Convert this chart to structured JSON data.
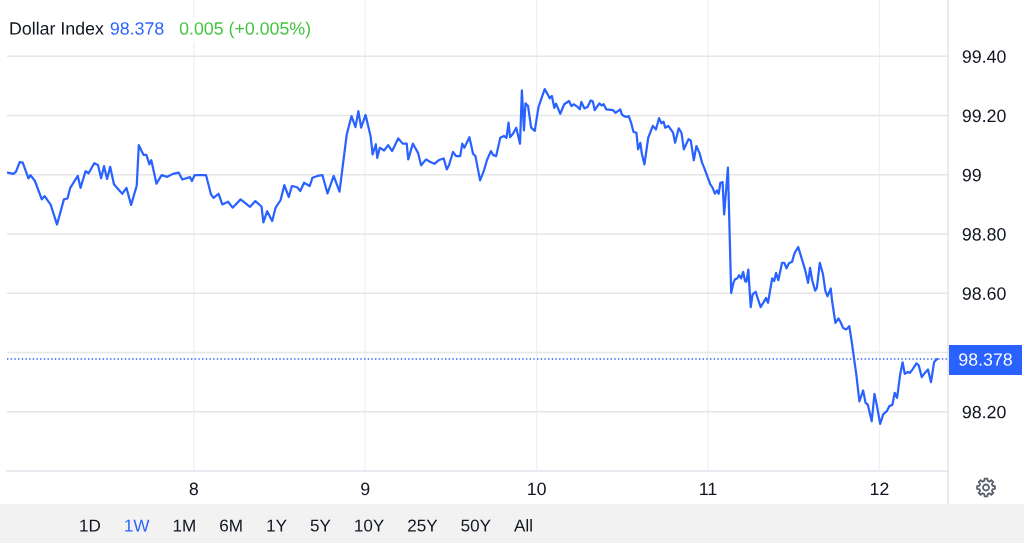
{
  "chart_data": {
    "type": "line",
    "title": "Dollar Index",
    "annotations": [
      "98.378",
      "0.005 (+0.005%)",
      "1D",
      "1W",
      "1M",
      "6M",
      "1Y",
      "5Y",
      "10Y",
      "25Y",
      "50Y",
      "All"
    ],
    "x": [
      6.914,
      6.947,
      6.962,
      6.984,
      7.002,
      7.035,
      7.047,
      7.073,
      7.113,
      7.13,
      7.15,
      7.164,
      7.202,
      7.242,
      7.263,
      7.279,
      7.323,
      7.339,
      7.368,
      7.386,
      7.419,
      7.441,
      7.459,
      7.476,
      7.494,
      7.512,
      7.534,
      7.568,
      7.583,
      7.607,
      7.634,
      7.667,
      7.679,
      7.707,
      7.723,
      7.741,
      7.752,
      7.782,
      7.812,
      7.845,
      7.878,
      7.912,
      7.933,
      7.978,
      7.989,
      8.005,
      8.071,
      8.1,
      8.115,
      8.144,
      8.166,
      8.2,
      8.226,
      8.273,
      8.328,
      8.359,
      8.395,
      8.406,
      8.428,
      8.457,
      8.477,
      8.506,
      8.528,
      8.554,
      8.572,
      8.603,
      8.621,
      8.643,
      8.676,
      8.692,
      8.721,
      8.75,
      8.78,
      8.816,
      8.85,
      8.892,
      8.92,
      8.943,
      8.96,
      8.976,
      9.002,
      9.031,
      9.043,
      9.062,
      9.07,
      9.085,
      9.11,
      9.134,
      9.157,
      9.193,
      9.218,
      9.242,
      9.251,
      9.278,
      9.308,
      9.326,
      9.355,
      9.377,
      9.404,
      9.431,
      9.458,
      9.476,
      9.489,
      9.512,
      9.53,
      9.554,
      9.566,
      9.578,
      9.608,
      9.629,
      9.643,
      9.67,
      9.692,
      9.71,
      9.733,
      9.746,
      9.764,
      9.788,
      9.809,
      9.824,
      9.836,
      9.845,
      9.863,
      9.881,
      9.903,
      9.914,
      9.926,
      9.935,
      9.95,
      9.968,
      9.989,
      10.011,
      10.047,
      10.062,
      10.076,
      10.089,
      10.103,
      10.113,
      10.138,
      10.161,
      10.189,
      10.203,
      10.216,
      10.239,
      10.252,
      10.261,
      10.279,
      10.297,
      10.315,
      10.328,
      10.339,
      10.366,
      10.379,
      10.391,
      10.406,
      10.446,
      10.46,
      10.488,
      10.497,
      10.51,
      10.524,
      10.537,
      10.551,
      10.565,
      10.582,
      10.592,
      10.605,
      10.614,
      10.629,
      10.651,
      10.678,
      10.696,
      10.714,
      10.728,
      10.741,
      10.75,
      10.768,
      10.796,
      10.808,
      10.829,
      10.845,
      10.859,
      10.886,
      10.899,
      10.917,
      10.932,
      10.95,
      10.965,
      10.977,
      10.995,
      11.013,
      11.027,
      11.04,
      11.052,
      11.062,
      11.072,
      11.085,
      11.094,
      11.116,
      11.135,
      11.148,
      11.157,
      11.17,
      11.181,
      11.193,
      11.205,
      11.216,
      11.224,
      11.235,
      11.249,
      11.26,
      11.278,
      11.292,
      11.307,
      11.325,
      11.338,
      11.35,
      11.374,
      11.386,
      11.397,
      11.41,
      11.432,
      11.445,
      11.458,
      11.472,
      11.49,
      11.505,
      11.526,
      11.544,
      11.566,
      11.584,
      11.595,
      11.608,
      11.625,
      11.635,
      11.652,
      11.67,
      11.685,
      11.697,
      11.716,
      11.724,
      11.743,
      11.761,
      11.773,
      11.788,
      11.806,
      11.824,
      11.838,
      11.854,
      11.865,
      11.883,
      11.905,
      11.919,
      11.932,
      11.955,
      11.971,
      11.986,
      12.004,
      12.022,
      12.043,
      12.058,
      12.076,
      12.089,
      12.103,
      12.121,
      12.135,
      12.148,
      12.166,
      12.178,
      12.193,
      12.216,
      12.229,
      12.247,
      12.265,
      12.283,
      12.301,
      12.319,
      12.337
    ],
    "series": [
      {
        "color": "#2962ff",
        "values": [
          99.007,
          99.003,
          99.01,
          99.043,
          99.041,
          98.988,
          98.999,
          98.979,
          98.917,
          98.928,
          98.911,
          98.9,
          98.832,
          98.917,
          98.92,
          98.956,
          98.996,
          98.956,
          99.012,
          99.005,
          99.039,
          99.033,
          98.988,
          99.029,
          98.986,
          99.027,
          98.968,
          98.945,
          98.936,
          98.956,
          98.898,
          98.964,
          99.1,
          99.067,
          99.067,
          99.035,
          99.049,
          98.97,
          98.999,
          98.993,
          99.003,
          99.007,
          98.984,
          98.992,
          98.979,
          98.999,
          98.999,
          98.934,
          98.922,
          98.936,
          98.9,
          98.909,
          98.889,
          98.917,
          98.892,
          98.911,
          98.893,
          98.839,
          98.877,
          98.844,
          98.889,
          98.914,
          98.965,
          98.925,
          98.962,
          98.958,
          98.945,
          98.973,
          98.962,
          98.99,
          98.996,
          98.999,
          98.937,
          98.996,
          98.943,
          99.136,
          99.198,
          99.161,
          99.215,
          99.159,
          99.202,
          99.131,
          99.069,
          99.103,
          99.057,
          99.091,
          99.082,
          99.1,
          99.08,
          99.123,
          99.105,
          99.105,
          99.052,
          99.105,
          99.074,
          99.032,
          99.052,
          99.044,
          99.037,
          99.05,
          99.055,
          99.018,
          99.033,
          99.077,
          99.063,
          99.063,
          99.105,
          99.091,
          99.127,
          99.071,
          99.063,
          98.981,
          99.013,
          99.049,
          99.08,
          99.067,
          99.063,
          99.125,
          99.131,
          99.125,
          99.176,
          99.127,
          99.139,
          99.159,
          99.105,
          99.285,
          99.15,
          99.241,
          99.232,
          99.159,
          99.148,
          99.229,
          99.289,
          99.274,
          99.258,
          99.266,
          99.226,
          99.24,
          99.206,
          99.238,
          99.249,
          99.232,
          99.238,
          99.229,
          99.221,
          99.246,
          99.224,
          99.229,
          99.251,
          99.247,
          99.218,
          99.241,
          99.234,
          99.238,
          99.221,
          99.218,
          99.209,
          99.221,
          99.204,
          99.198,
          99.195,
          99.198,
          99.176,
          99.145,
          99.142,
          99.086,
          99.108,
          99.071,
          99.035,
          99.125,
          99.165,
          99.153,
          99.191,
          99.174,
          99.179,
          99.159,
          99.165,
          99.142,
          99.108,
          99.157,
          99.142,
          99.086,
          99.12,
          99.116,
          99.049,
          99.097,
          99.074,
          99.041,
          99.024,
          98.996,
          98.968,
          98.956,
          98.936,
          98.947,
          98.936,
          98.973,
          98.975,
          98.866,
          99.024,
          98.601,
          98.635,
          98.647,
          98.65,
          98.661,
          98.65,
          98.672,
          98.641,
          98.639,
          98.68,
          98.553,
          98.596,
          98.605,
          98.579,
          98.553,
          98.571,
          98.584,
          98.568,
          98.65,
          98.641,
          98.669,
          98.644,
          98.703,
          98.703,
          98.684,
          98.701,
          98.706,
          98.736,
          98.756,
          98.722,
          98.68,
          98.635,
          98.686,
          98.643,
          98.609,
          98.618,
          98.703,
          98.666,
          98.607,
          98.59,
          98.616,
          98.573,
          98.5,
          98.515,
          98.503,
          98.483,
          98.478,
          98.489,
          98.438,
          98.371,
          98.326,
          98.235,
          98.272,
          98.23,
          98.224,
          98.168,
          98.26,
          98.219,
          98.159,
          98.191,
          98.202,
          98.219,
          98.224,
          98.264,
          98.247,
          98.326,
          98.367,
          98.328,
          98.334,
          98.331,
          98.343,
          98.363,
          98.357,
          98.317,
          98.331,
          98.343,
          98.3,
          98.368,
          98.378
        ]
      }
    ],
    "xlim": [
      6.91,
      12.4
    ],
    "xticks": [
      8,
      9,
      10,
      11,
      12
    ],
    "ylim": [
      98.0,
      99.59
    ],
    "yticks": [
      {
        "value": 98.2,
        "label": "98.20"
      },
      {
        "value": 98.4,
        "label": null
      },
      {
        "value": 98.6,
        "label": "98.60"
      },
      {
        "value": 98.8,
        "label": "98.80"
      },
      99,
      {
        "value": 99.2,
        "label": "99.20"
      },
      {
        "value": 99.4,
        "label": "99.40"
      }
    ],
    "ref_lines": [
      {
        "axis": "y",
        "value": 98.378,
        "label": "98.378",
        "color": "#2962ff",
        "line_style": "dotted"
      }
    ],
    "grid": true
  }
}
